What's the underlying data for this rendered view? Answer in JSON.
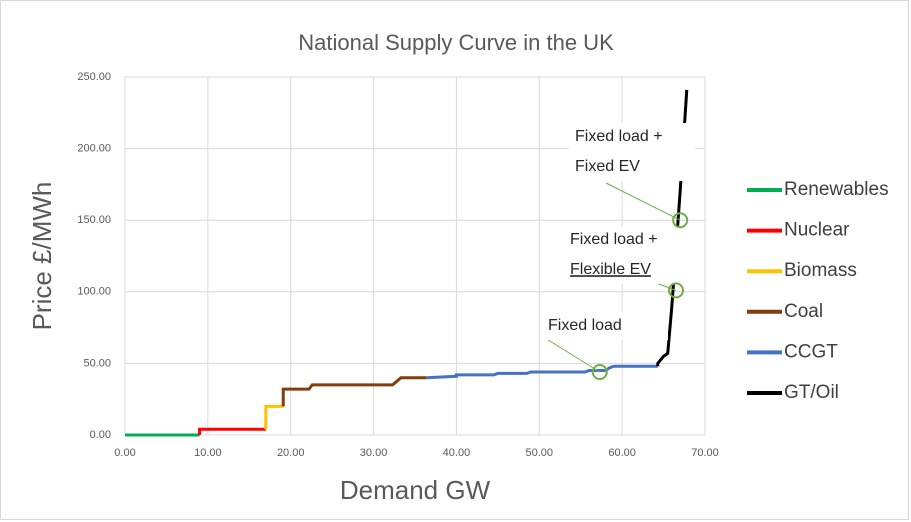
{
  "chart_data": {
    "type": "line",
    "title": "National Supply Curve in the UK",
    "x_label": "Demand GW",
    "y_label": "Price  £/MWh",
    "xlim": [
      0,
      70
    ],
    "ylim": [
      0,
      250
    ],
    "xticks": [
      {
        "value": 0,
        "label": "0.00"
      },
      {
        "value": 10,
        "label": "10.00"
      },
      {
        "value": 20,
        "label": "20.00"
      },
      {
        "value": 30,
        "label": "30.00"
      },
      {
        "value": 40,
        "label": "40.00"
      },
      {
        "value": 50,
        "label": "50.00"
      },
      {
        "value": 60,
        "label": "60.00"
      },
      {
        "value": 70,
        "label": "70.00"
      }
    ],
    "yticks": [
      {
        "value": 0,
        "label": "0.00"
      },
      {
        "value": 50,
        "label": "50.00"
      },
      {
        "value": 100,
        "label": "100.00"
      },
      {
        "value": 150,
        "label": "150.00"
      },
      {
        "value": 200,
        "label": "200.00"
      },
      {
        "value": 250,
        "label": "250.00"
      }
    ],
    "grid": true,
    "legend": "right",
    "series": [
      {
        "name": "Renewables",
        "color": "#00b050",
        "x": [
          0,
          9
        ],
        "values": [
          0,
          0
        ]
      },
      {
        "name": "Nuclear",
        "color": "#ff0000",
        "x": [
          9,
          9,
          17
        ],
        "values": [
          0,
          4,
          4
        ]
      },
      {
        "name": "Biomass",
        "color": "#ffc000",
        "x": [
          17,
          17,
          19.1
        ],
        "values": [
          4,
          20,
          20
        ]
      },
      {
        "name": "Coal",
        "color": "#843c0c",
        "x": [
          19.1,
          19.1,
          22.2,
          22.6,
          32.3,
          33.3,
          36.4
        ],
        "values": [
          20,
          32,
          32,
          35,
          35,
          40,
          40
        ]
      },
      {
        "name": "CCGT",
        "color": "#4472c4",
        "x": [
          36.4,
          40,
          40,
          44.5,
          45,
          48.5,
          49,
          55.5,
          56,
          58,
          58.5,
          59,
          64.3
        ],
        "values": [
          40,
          41,
          42,
          42,
          43,
          43,
          44,
          44,
          45,
          45,
          47,
          48,
          48
        ]
      },
      {
        "name": "GT/Oil",
        "color": "#000000",
        "x": [
          64.3,
          64.3,
          65,
          65.5,
          66,
          66.5,
          67,
          67.8
        ],
        "values": [
          48,
          50,
          55,
          57,
          90,
          130,
          170,
          241
        ]
      }
    ],
    "annotations": [
      {
        "lines": [
          "Fixed load"
        ],
        "x": 57.3,
        "y": 44
      },
      {
        "lines": [
          "Fixed load +",
          "Flexible EV"
        ],
        "x": 66.5,
        "y": 101
      },
      {
        "lines": [
          "Fixed load +",
          "Fixed EV"
        ],
        "x": 67,
        "y": 150
      }
    ]
  }
}
